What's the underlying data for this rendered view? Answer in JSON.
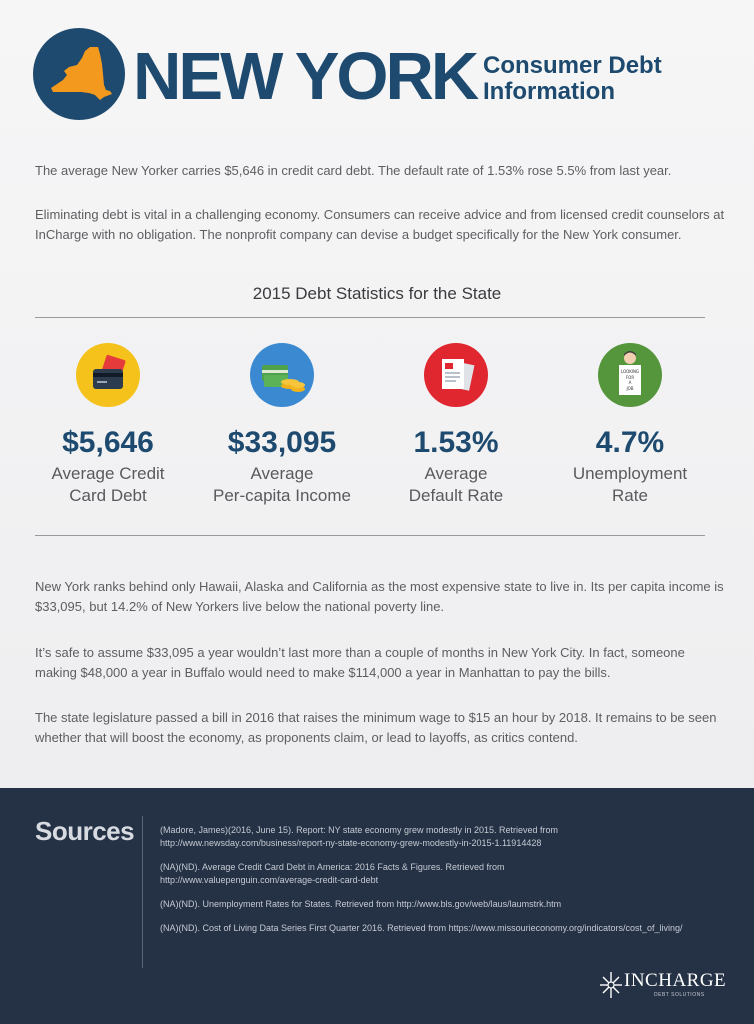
{
  "header": {
    "title": "NEW YORK",
    "subtitle_line1": "Consumer Debt",
    "subtitle_line2": "Information"
  },
  "intro": [
    "The average New Yorker carries $5,646 in credit card debt. The default rate of 1.53% rose 5.5% from last year.",
    "Eliminating debt is vital in a challenging economy. Consumers can receive advice and from licensed credit counselors at InCharge with no obligation. The nonprofit company can devise a budget specifically for the New  York consumer."
  ],
  "stats_title": "2015 Debt Statistics for the State",
  "stats": [
    {
      "value": "$5,646",
      "label_line1": "Average Credit",
      "label_line2": "Card Debt",
      "icon": "credit-card-icon",
      "color": "#f4c21b"
    },
    {
      "value": "$33,095",
      "label_line1": "Average",
      "label_line2": "Per-capita Income",
      "icon": "money-coins-icon",
      "color": "#3b8ad1"
    },
    {
      "value": "1.53%",
      "label_line1": "Average",
      "label_line2": "Default Rate",
      "icon": "documents-icon",
      "color": "#e0262f"
    },
    {
      "value": "4.7%",
      "label_line1": "Unemployment",
      "label_line2": "Rate",
      "icon": "job-seeker-icon",
      "color": "#55963d"
    }
  ],
  "body": [
    "New York ranks behind only Hawaii, Alaska and California as the most expensive state to live in. Its per capita income is $33,095, but 14.2% of New Yorkers live below the national poverty line.",
    "It’s safe to assume $33,095 a year wouldn’t last more than a couple of months in New York City. In fact, someone making $48,000 a year in Buffalo would need to make $114,000 a year in Manhattan to pay the bills.",
    "The state legislature passed a bill in 2016 that raises the minimum wage to $15 an hour by 2018. It remains to be seen whether that will boost the economy, as proponents claim, or lead to layoffs, as critics contend."
  ],
  "sign_text": {
    "line1": "LOOKING",
    "line2": "FOR",
    "line3": "A",
    "line4": "JOB"
  },
  "sources": {
    "title": "Sources",
    "refs": [
      {
        "line1": "(Madore, James)(2016, June 15). Report: NY state economy grew modestly in 2015. Retrieved from",
        "line2": "http://www.newsday.com/business/report-ny-state-economy-grew-modestly-in-2015-1.11914428"
      },
      {
        "line1": "(NA)(ND). Average Credit Card Debt in America: 2016 Facts & Figures. Retrieved from",
        "line2": "http://www.valuepenguin.com/average-credit-card-debt"
      },
      {
        "line1": "(NA)(ND). Unemployment Rates for States. Retrieved from http://www.bls.gov/web/laus/laumstrk.htm",
        "line2": ""
      },
      {
        "line1": "(NA)(ND). Cost of Living Data Series First Quarter 2016. Retrieved from https://www.missourieconomy.org/indicators/cost_of_living/",
        "line2": ""
      }
    ]
  },
  "logo": {
    "brand": "INCHARGE",
    "tagline": "DEBT SOLUTIONS"
  },
  "colors": {
    "navy": "#1d4a6e",
    "orange": "#f39a1e",
    "footer": "#253246"
  }
}
